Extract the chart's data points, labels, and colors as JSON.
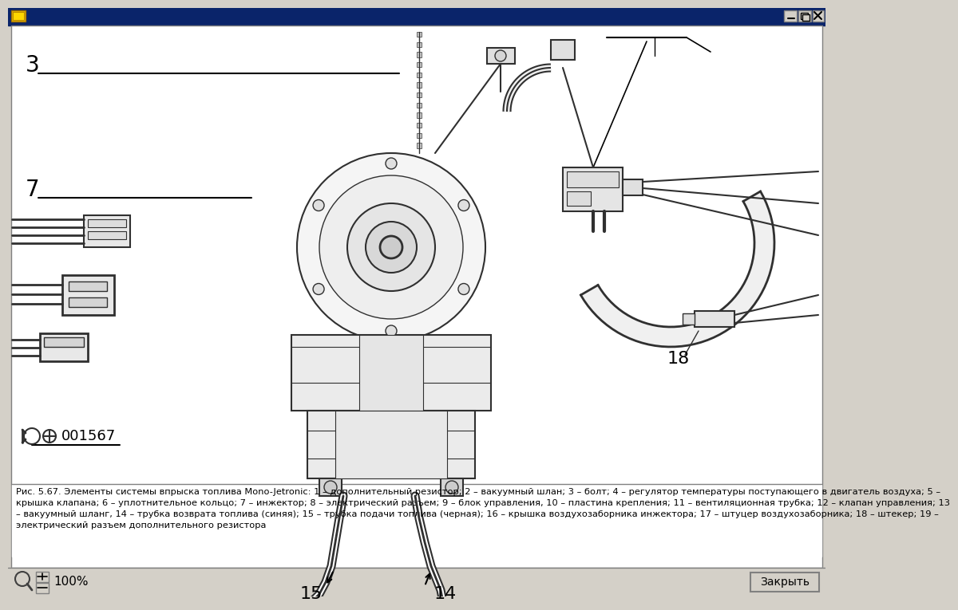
{
  "window_bg": "#d4d0c8",
  "content_bg": "#ffffff",
  "title_bar_color": "#0a246a",
  "icon_color": "#ffd700",
  "diagram_label_3": "3",
  "diagram_label_7": "7",
  "diagram_label_15": "15",
  "diagram_label_14": "14",
  "diagram_label_18": "18",
  "diagram_label_001567": "001567",
  "caption_line1": "Рис. 5.67. Элементы системы впрыска топлива Mono-Jetronic: 1 – дополнительный резистор; 2 – вакуумный шлан; 3 – болт; 4 – регулятор температуры поступающего в двигатель воздуха; 5 –",
  "caption_line2": "крышка клапана; 6 – уплотнительное кольцо; 7 – инжектор; 8 – электрический разъем; 9 – блок управления, 10 – пластина крепления; 11 – вентиляционная трубка; 12 – клапан управления; 13",
  "caption_line3": "– вакуумный шланг, 14 – трубка возврата топлива (синяя); 15 – трубка подачи топлива (черная); 16 – крышка воздухозаборника инжектора; 17 – штуцер воздухозаборника; 18 – штекер; 19 –",
  "caption_line4": "электрический разъем дополнительного резистора",
  "zoom_text": "100%",
  "close_button_text": "Закрыть",
  "line_color": "#000000",
  "draw_color": "#303030"
}
